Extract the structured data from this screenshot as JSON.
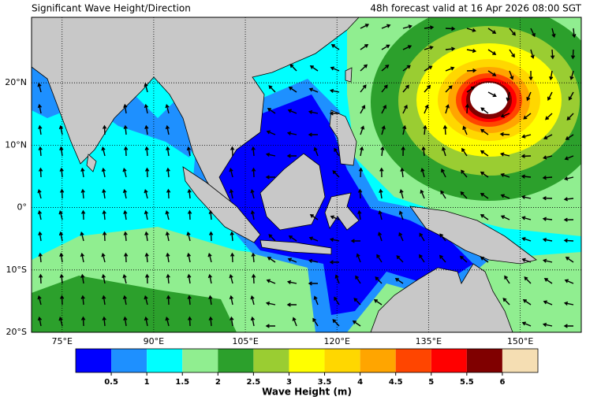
{
  "header": {
    "title": "Significant Wave Height/Direction",
    "valid": "48h forecast valid at 16 Apr 2026 08:00 SGT"
  },
  "map": {
    "lon_range": [
      70,
      160
    ],
    "lat_range": [
      -20,
      30.5
    ],
    "lon_ticks": [
      {
        "value": 75,
        "label": "75°E"
      },
      {
        "value": 90,
        "label": "90°E"
      },
      {
        "value": 105,
        "label": "105°E"
      },
      {
        "value": 120,
        "label": "120°E"
      },
      {
        "value": 135,
        "label": "135°E"
      },
      {
        "value": 150,
        "label": "150°E"
      }
    ],
    "lat_ticks": [
      {
        "value": -20,
        "label": "20°S"
      },
      {
        "value": -10,
        "label": "10°S"
      },
      {
        "value": 0,
        "label": "0°"
      },
      {
        "value": 10,
        "label": "10°N"
      },
      {
        "value": 20,
        "label": "20°N"
      }
    ]
  },
  "colorbar": {
    "label": "Wave Height (m)",
    "ticks": [
      0.5,
      1,
      1.5,
      2,
      2.5,
      3,
      3.5,
      4,
      4.5,
      5,
      5.5,
      6
    ],
    "colors": [
      "#0000ff",
      "#1e90ff",
      "#00ffff",
      "#90ee90",
      "#2ca02c",
      "#9acd32",
      "#ffff00",
      "#ffd700",
      "#ffa500",
      "#ff4500",
      "#ff0000",
      "#800000",
      "#f5deb3"
    ]
  }
}
